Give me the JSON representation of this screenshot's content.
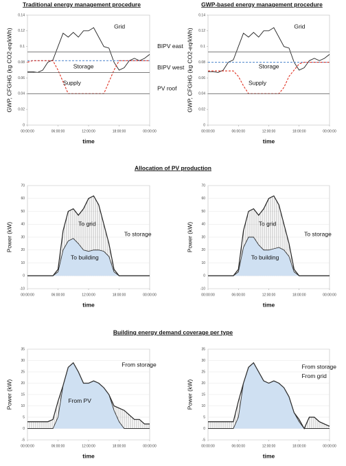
{
  "headings": [
    "Allocation of PV production",
    "Building energy demand coverage per type"
  ],
  "chart_data": [
    {
      "type": "line",
      "title": "Traditional energy management procedure",
      "xlabel": "time",
      "ylabel": "GWP, CFGHG (kg CO2-eq/kWh)",
      "grid": false,
      "x": [
        0,
        1,
        2,
        3,
        4,
        5,
        6,
        7,
        8,
        9,
        10,
        11,
        12,
        13,
        14,
        15,
        16,
        17,
        18,
        19,
        20,
        21,
        22,
        23,
        24
      ],
      "xlim": [
        0,
        24
      ],
      "xticks": [
        {
          "value": 0,
          "label": "00:00:00"
        },
        {
          "value": 6,
          "label": "06:00:00"
        },
        {
          "value": 12,
          "label": "12:00:00"
        },
        {
          "value": 18,
          "label": "18:00:00"
        },
        {
          "value": 24,
          "label": "00:00:00"
        }
      ],
      "ylim": [
        0,
        0.14
      ],
      "yticks": [
        0,
        0.02,
        0.04,
        0.06,
        0.08,
        0.1,
        0.12,
        0.14
      ],
      "series": [
        {
          "name": "Grid",
          "color": "#222222",
          "values": [
            0.068,
            0.068,
            0.067,
            0.07,
            0.08,
            0.083,
            0.1,
            0.117,
            0.112,
            0.118,
            0.112,
            0.12,
            0.12,
            0.124,
            0.112,
            0.1,
            0.098,
            0.08,
            0.07,
            0.073,
            0.082,
            0.085,
            0.082,
            0.085,
            0.09
          ]
        },
        {
          "name": "Storage",
          "color": "#5b8fd0",
          "dash": true,
          "values": [
            0.082,
            0.082,
            0.082,
            0.082,
            0.082,
            0.082,
            0.082,
            0.082,
            0.082,
            0.082,
            0.082,
            0.082,
            0.082,
            0.082,
            0.082,
            0.082,
            0.082,
            0.082,
            0.082,
            0.082,
            0.082,
            0.082,
            0.082,
            0.082,
            0.082
          ]
        },
        {
          "name": "Supply",
          "color": "#e03020",
          "dash": true,
          "values": [
            0.08,
            0.082,
            0.082,
            0.082,
            0.082,
            0.082,
            0.07,
            0.055,
            0.04,
            0.04,
            0.04,
            0.04,
            0.04,
            0.04,
            0.04,
            0.04,
            0.055,
            0.07,
            0.082,
            0.082,
            0.082,
            0.082,
            0.082,
            0.082,
            0.082
          ]
        },
        {
          "name": "BIPV east",
          "color": "#666666",
          "values": [
            0.093,
            0.093,
            0.093,
            0.093,
            0.093,
            0.093,
            0.093,
            0.093,
            0.093,
            0.093,
            0.093,
            0.093,
            0.093,
            0.093,
            0.093,
            0.093,
            0.093,
            0.093,
            0.093,
            0.093,
            0.093,
            0.093,
            0.093,
            0.093,
            0.093
          ]
        },
        {
          "name": "BIPV west",
          "color": "#666666",
          "values": [
            0.067,
            0.067,
            0.067,
            0.067,
            0.067,
            0.067,
            0.067,
            0.067,
            0.067,
            0.067,
            0.067,
            0.067,
            0.067,
            0.067,
            0.067,
            0.067,
            0.067,
            0.067,
            0.067,
            0.067,
            0.067,
            0.067,
            0.067,
            0.067,
            0.067
          ]
        },
        {
          "name": "PV roof",
          "color": "#666666",
          "values": [
            0.04,
            0.04,
            0.04,
            0.04,
            0.04,
            0.04,
            0.04,
            0.04,
            0.04,
            0.04,
            0.04,
            0.04,
            0.04,
            0.04,
            0.04,
            0.04,
            0.04,
            0.04,
            0.04,
            0.04,
            0.04,
            0.04,
            0.04,
            0.04,
            0.04
          ]
        }
      ]
    },
    {
      "type": "line",
      "title": "GWP-based energy management procedure",
      "xlabel": "time",
      "ylabel": "GWP, CFGHG (kg CO2-eq/kWh)",
      "grid": false,
      "x": [
        0,
        1,
        2,
        3,
        4,
        5,
        6,
        7,
        8,
        9,
        10,
        11,
        12,
        13,
        14,
        15,
        16,
        17,
        18,
        19,
        20,
        21,
        22,
        23,
        24
      ],
      "xlim": [
        0,
        24
      ],
      "xticks": [
        {
          "value": 0,
          "label": "00:00:00"
        },
        {
          "value": 6,
          "label": "06:00:00"
        },
        {
          "value": 12,
          "label": "12:00:00"
        },
        {
          "value": 18,
          "label": "18:00:00"
        },
        {
          "value": 24,
          "label": "00:00:00"
        }
      ],
      "ylim": [
        0,
        0.14
      ],
      "yticks": [
        0,
        0.02,
        0.04,
        0.06,
        0.08,
        0.1,
        0.12,
        0.14
      ],
      "series": [
        {
          "name": "Grid",
          "color": "#222222",
          "values": [
            0.068,
            0.068,
            0.067,
            0.07,
            0.08,
            0.083,
            0.1,
            0.117,
            0.112,
            0.118,
            0.112,
            0.12,
            0.12,
            0.124,
            0.112,
            0.1,
            0.098,
            0.08,
            0.07,
            0.073,
            0.082,
            0.085,
            0.082,
            0.085,
            0.09
          ]
        },
        {
          "name": "Storage",
          "color": "#5b8fd0",
          "dash": true,
          "values": [
            0.08,
            0.08,
            0.08,
            0.08,
            0.08,
            0.08,
            0.08,
            0.08,
            0.08,
            0.08,
            0.08,
            0.08,
            0.08,
            0.08,
            0.08,
            0.08,
            0.08,
            0.08,
            0.08,
            0.08,
            0.08,
            0.08,
            0.08,
            0.08,
            0.08
          ]
        },
        {
          "name": "Supply",
          "color": "#e03020",
          "dash": true,
          "values": [
            0.069,
            0.069,
            0.069,
            0.069,
            0.069,
            0.069,
            0.062,
            0.05,
            0.04,
            0.04,
            0.04,
            0.04,
            0.04,
            0.04,
            0.04,
            0.048,
            0.062,
            0.07,
            0.078,
            0.08,
            0.08,
            0.08,
            0.08,
            0.08,
            0.08
          ]
        },
        {
          "color": "#666666",
          "values": [
            0.093,
            0.093,
            0.093,
            0.093,
            0.093,
            0.093,
            0.093,
            0.093,
            0.093,
            0.093,
            0.093,
            0.093,
            0.093,
            0.093,
            0.093,
            0.093,
            0.093,
            0.093,
            0.093,
            0.093,
            0.093,
            0.093,
            0.093,
            0.093,
            0.093
          ]
        },
        {
          "color": "#666666",
          "values": [
            0.04,
            0.04,
            0.04,
            0.04,
            0.04,
            0.04,
            0.04,
            0.04,
            0.04,
            0.04,
            0.04,
            0.04,
            0.04,
            0.04,
            0.04,
            0.04,
            0.04,
            0.04,
            0.04,
            0.04,
            0.04,
            0.04,
            0.04,
            0.04,
            0.04
          ]
        }
      ]
    },
    {
      "type": "line",
      "xlabel": "time",
      "ylabel": "Power (kW)",
      "grid": true,
      "x": [
        0,
        1,
        2,
        3,
        4,
        5,
        6,
        7,
        8,
        9,
        10,
        11,
        12,
        13,
        14,
        15,
        16,
        17,
        18,
        19,
        20,
        21,
        22,
        23,
        24
      ],
      "xlim": [
        0,
        24
      ],
      "xticks": [
        {
          "value": 0,
          "label": "00:00:00"
        },
        {
          "value": 6,
          "label": "06:00:00"
        },
        {
          "value": 12,
          "label": "12:00:00"
        },
        {
          "value": 18,
          "label": "18:00:00"
        },
        {
          "value": 24,
          "label": "00:00:00"
        }
      ],
      "ylim": [
        -10,
        70
      ],
      "yticks": [
        -10,
        0,
        10,
        20,
        30,
        40,
        50,
        60,
        70
      ],
      "annotations": [
        "To grid",
        "To storage",
        "To building"
      ],
      "series": [
        {
          "color": "#222222",
          "hatch": true,
          "values": [
            0,
            0,
            0,
            0,
            0,
            0,
            5,
            35,
            50,
            52,
            47,
            52,
            60,
            62,
            55,
            40,
            25,
            5,
            0,
            0,
            0,
            0,
            0,
            0,
            0
          ]
        },
        {
          "color": "#333333",
          "fill": "#cfe0f2",
          "values": [
            0,
            0,
            0,
            0,
            0,
            0,
            3,
            20,
            27,
            29,
            25,
            20,
            19,
            20,
            20,
            19,
            15,
            3,
            0,
            0,
            0,
            0,
            0,
            0,
            0
          ]
        }
      ]
    },
    {
      "type": "line",
      "xlabel": "time",
      "ylabel": "Power (kW)",
      "grid": true,
      "x": [
        0,
        1,
        2,
        3,
        4,
        5,
        6,
        7,
        8,
        9,
        10,
        11,
        12,
        13,
        14,
        15,
        16,
        17,
        18,
        19,
        20,
        21,
        22,
        23,
        24
      ],
      "xlim": [
        0,
        24
      ],
      "xticks": [
        {
          "value": 0,
          "label": "00:00:00"
        },
        {
          "value": 6,
          "label": "06:00:00"
        },
        {
          "value": 12,
          "label": "12:00:00"
        },
        {
          "value": 18,
          "label": "18:00:00"
        },
        {
          "value": 24,
          "label": "00:00:00"
        }
      ],
      "ylim": [
        -10,
        70
      ],
      "yticks": [
        -10,
        0,
        10,
        20,
        30,
        40,
        50,
        60,
        70
      ],
      "annotations": [
        "To grid",
        "To storage",
        "To building"
      ],
      "series": [
        {
          "color": "#222222",
          "hatch": true,
          "values": [
            0,
            0,
            0,
            0,
            0,
            0,
            5,
            35,
            50,
            52,
            47,
            52,
            60,
            62,
            55,
            40,
            25,
            5,
            0,
            0,
            0,
            0,
            0,
            0,
            0
          ]
        },
        {
          "color": "#333333",
          "fill": "#cfe0f2",
          "values": [
            0,
            0,
            0,
            0,
            0,
            0,
            3,
            22,
            30,
            30,
            24,
            20,
            20,
            21,
            22,
            20,
            15,
            3,
            0,
            0,
            0,
            0,
            0,
            0,
            0
          ]
        }
      ]
    },
    {
      "type": "line",
      "xlabel": "time",
      "ylabel": "Power (kW)",
      "grid": true,
      "x": [
        0,
        1,
        2,
        3,
        4,
        5,
        6,
        7,
        8,
        9,
        10,
        11,
        12,
        13,
        14,
        15,
        16,
        17,
        18,
        19,
        20,
        21,
        22,
        23,
        24
      ],
      "xlim": [
        0,
        24
      ],
      "xticks": [
        {
          "value": 0,
          "label": "00:00:00"
        },
        {
          "value": 6,
          "label": "06:00:00"
        },
        {
          "value": 12,
          "label": "12:00:00"
        },
        {
          "value": 18,
          "label": "18:00:00"
        },
        {
          "value": 24,
          "label": "00:00:00"
        }
      ],
      "ylim": [
        -5,
        35
      ],
      "yticks": [
        -5,
        0,
        5,
        10,
        15,
        20,
        25,
        30,
        35
      ],
      "annotations": [
        "From PV",
        "From storage"
      ],
      "series": [
        {
          "color": "#222222",
          "hatch": true,
          "values": [
            3,
            3,
            3,
            3,
            3,
            4,
            12,
            19,
            27,
            29,
            25,
            20,
            20,
            21,
            20,
            18,
            15,
            10,
            9,
            8,
            6,
            4,
            4,
            2,
            2
          ]
        },
        {
          "color": "#333333",
          "fill": "#cfe0f2",
          "values": [
            0,
            0,
            0,
            0,
            0,
            0,
            5,
            19,
            27,
            29,
            25,
            20,
            20,
            21,
            20,
            18,
            15,
            8,
            3,
            0,
            0,
            0,
            0,
            0,
            0
          ]
        }
      ]
    },
    {
      "type": "line",
      "xlabel": "time",
      "ylabel": "Power (kW)",
      "grid": true,
      "x": [
        0,
        1,
        2,
        3,
        4,
        5,
        6,
        7,
        8,
        9,
        10,
        11,
        12,
        13,
        14,
        15,
        16,
        17,
        18,
        19,
        20,
        21,
        22,
        23,
        24
      ],
      "xlim": [
        0,
        24
      ],
      "xticks": [
        {
          "value": 0,
          "label": "00:00:00"
        },
        {
          "value": 6,
          "label": "06:00:00"
        },
        {
          "value": 12,
          "label": "12:00:00"
        },
        {
          "value": 18,
          "label": "18:00:00"
        },
        {
          "value": 24,
          "label": "00:00:00"
        }
      ],
      "ylim": [
        -5,
        35
      ],
      "yticks": [
        -5,
        0,
        5,
        10,
        15,
        20,
        25,
        30,
        35
      ],
      "annotations": [
        "From storage",
        "From grid"
      ],
      "series": [
        {
          "color": "#222222",
          "hatch": true,
          "values": [
            3,
            3,
            3,
            3,
            3,
            3,
            12,
            20,
            27,
            29,
            25,
            21,
            20,
            21,
            20,
            18,
            14,
            7,
            4,
            0,
            5,
            5,
            3,
            2,
            1
          ]
        },
        {
          "color": "#333333",
          "fill": "#cfe0f2",
          "values": [
            0,
            0,
            0,
            0,
            0,
            0,
            5,
            20,
            27,
            29,
            25,
            21,
            20,
            21,
            20,
            18,
            14,
            7,
            3,
            0,
            0,
            0,
            0,
            0,
            0
          ]
        }
      ]
    }
  ]
}
